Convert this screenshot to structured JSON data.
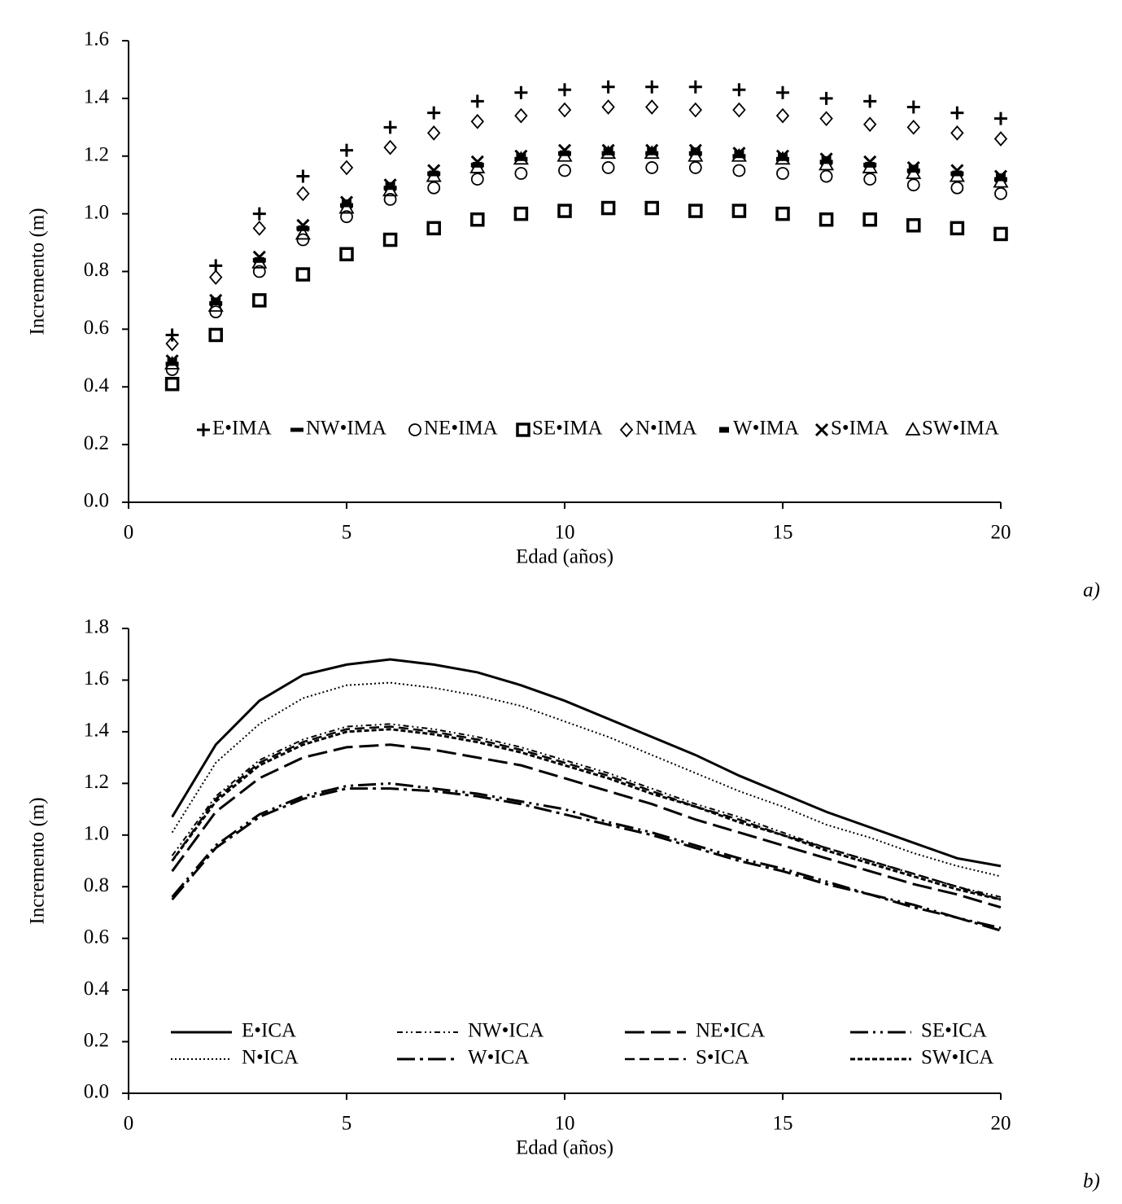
{
  "chart_data": [
    {
      "type": "scatter",
      "panel_label": "a)",
      "xlabel": "Edad (años)",
      "ylabel": "Incremento (m)",
      "x": [
        1,
        2,
        3,
        4,
        5,
        6,
        7,
        8,
        9,
        10,
        11,
        12,
        13,
        14,
        15,
        16,
        17,
        18,
        19,
        20
      ],
      "xlim": [
        0,
        20
      ],
      "xticks": [
        0,
        5,
        10,
        15,
        20
      ],
      "ylim": [
        0,
        1.6
      ],
      "yticks": [
        {
          "value": 0,
          "label": "0.0"
        },
        0.2,
        0.4,
        0.6,
        0.8,
        {
          "value": 1,
          "label": "1.0"
        },
        1.2,
        1.4,
        1.6
      ],
      "legend": "lower center",
      "series": [
        {
          "name": "E•IMA",
          "color": "#000000",
          "marker": "plus",
          "values": [
            0.58,
            0.82,
            1.0,
            1.13,
            1.22,
            1.3,
            1.35,
            1.39,
            1.42,
            1.43,
            1.44,
            1.44,
            1.44,
            1.43,
            1.42,
            1.4,
            1.39,
            1.37,
            1.35,
            1.33
          ]
        },
        {
          "name": "NW•IMA",
          "color": "#000000",
          "marker": "dash",
          "values": [
            0.48,
            0.69,
            0.84,
            0.95,
            1.03,
            1.09,
            1.14,
            1.17,
            1.19,
            1.21,
            1.21,
            1.21,
            1.21,
            1.2,
            1.19,
            1.18,
            1.17,
            1.15,
            1.14,
            1.12
          ]
        },
        {
          "name": "NE•IMA",
          "color": "#000000",
          "marker": "circle",
          "values": [
            0.46,
            0.66,
            0.8,
            0.91,
            0.99,
            1.05,
            1.09,
            1.12,
            1.14,
            1.15,
            1.16,
            1.16,
            1.16,
            1.15,
            1.14,
            1.13,
            1.12,
            1.1,
            1.09,
            1.07
          ]
        },
        {
          "name": "SE•IMA",
          "color": "#000000",
          "marker": "square",
          "values": [
            0.41,
            0.58,
            0.7,
            0.79,
            0.86,
            0.91,
            0.95,
            0.98,
            1.0,
            1.01,
            1.02,
            1.02,
            1.01,
            1.01,
            1.0,
            0.98,
            0.98,
            0.96,
            0.95,
            0.93
          ]
        },
        {
          "name": "N•IMA",
          "color": "#000000",
          "marker": "diamond",
          "values": [
            0.55,
            0.78,
            0.95,
            1.07,
            1.16,
            1.23,
            1.28,
            1.32,
            1.34,
            1.36,
            1.37,
            1.37,
            1.36,
            1.36,
            1.34,
            1.33,
            1.31,
            1.3,
            1.28,
            1.26
          ]
        },
        {
          "name": "W•IMA",
          "color": "#000000",
          "marker": "block",
          "values": [
            0.49,
            0.7,
            0.84,
            0.95,
            1.04,
            1.1,
            1.14,
            1.17,
            1.2,
            1.21,
            1.22,
            1.22,
            1.22,
            1.21,
            1.2,
            1.19,
            1.17,
            1.16,
            1.14,
            1.13
          ]
        },
        {
          "name": "S•IMA",
          "color": "#000000",
          "marker": "cross",
          "values": [
            0.49,
            0.7,
            0.85,
            0.96,
            1.04,
            1.1,
            1.15,
            1.18,
            1.2,
            1.22,
            1.22,
            1.22,
            1.22,
            1.21,
            1.2,
            1.19,
            1.18,
            1.16,
            1.15,
            1.13
          ]
        },
        {
          "name": "SW•IMA",
          "color": "#000000",
          "marker": "triangle",
          "values": [
            0.48,
            0.68,
            0.83,
            0.93,
            1.02,
            1.08,
            1.13,
            1.16,
            1.19,
            1.2,
            1.21,
            1.21,
            1.2,
            1.2,
            1.19,
            1.17,
            1.16,
            1.14,
            1.13,
            1.11
          ]
        }
      ]
    },
    {
      "type": "line",
      "panel_label": "b)",
      "xlabel": "Edad (años)",
      "ylabel": "Incremento (m)",
      "x": [
        1,
        2,
        3,
        4,
        5,
        6,
        7,
        8,
        9,
        10,
        11,
        12,
        13,
        14,
        15,
        16,
        17,
        18,
        19,
        20
      ],
      "xlim": [
        0,
        20
      ],
      "xticks": [
        0,
        5,
        10,
        15,
        20
      ],
      "ylim": [
        0,
        1.8
      ],
      "yticks": [
        {
          "value": 0,
          "label": "0.0"
        },
        0.2,
        0.4,
        0.6,
        0.8,
        {
          "value": 1,
          "label": "1.0"
        },
        1.2,
        1.4,
        1.6,
        1.8
      ],
      "legend": "lower center",
      "series": [
        {
          "name": "E•ICA",
          "color": "#000000",
          "dash": "solid",
          "values": [
            1.07,
            1.35,
            1.52,
            1.62,
            1.66,
            1.68,
            1.66,
            1.63,
            1.58,
            1.52,
            1.45,
            1.38,
            1.31,
            1.23,
            1.16,
            1.09,
            1.03,
            0.97,
            0.91,
            0.88
          ]
        },
        {
          "name": "NW•ICA",
          "color": "#000000",
          "dash": "dash-dot-dot",
          "values": [
            0.92,
            1.15,
            1.29,
            1.37,
            1.42,
            1.43,
            1.41,
            1.38,
            1.34,
            1.29,
            1.24,
            1.18,
            1.12,
            1.07,
            1.01,
            0.95,
            0.9,
            0.85,
            0.8,
            0.76
          ]
        },
        {
          "name": "NE•ICA",
          "color": "#000000",
          "dash": "long-dash",
          "values": [
            0.86,
            1.09,
            1.22,
            1.3,
            1.34,
            1.35,
            1.33,
            1.3,
            1.27,
            1.22,
            1.17,
            1.12,
            1.06,
            1.01,
            0.96,
            0.91,
            0.86,
            0.81,
            0.77,
            0.72
          ]
        },
        {
          "name": "SE•ICA",
          "color": "#000000",
          "dash": "long-dash-dot-dot",
          "values": [
            0.76,
            0.96,
            1.08,
            1.15,
            1.19,
            1.2,
            1.18,
            1.16,
            1.13,
            1.1,
            1.05,
            1.01,
            0.96,
            0.91,
            0.87,
            0.82,
            0.77,
            0.73,
            0.68,
            0.64
          ]
        },
        {
          "name": "N•ICA",
          "color": "#000000",
          "dash": "dotted",
          "values": [
            1.01,
            1.28,
            1.43,
            1.53,
            1.58,
            1.59,
            1.57,
            1.54,
            1.5,
            1.44,
            1.38,
            1.31,
            1.24,
            1.17,
            1.11,
            1.04,
            0.99,
            0.93,
            0.88,
            0.84
          ]
        },
        {
          "name": "W•ICA",
          "color": "#000000",
          "dash": "long-dash-dot",
          "values": [
            0.75,
            0.95,
            1.07,
            1.14,
            1.18,
            1.18,
            1.17,
            1.15,
            1.12,
            1.08,
            1.04,
            1.0,
            0.95,
            0.9,
            0.86,
            0.81,
            0.77,
            0.72,
            0.68,
            0.63
          ]
        },
        {
          "name": "S•ICA",
          "color": "#000000",
          "dash": "dashed",
          "values": [
            0.9,
            1.14,
            1.28,
            1.36,
            1.41,
            1.42,
            1.4,
            1.37,
            1.33,
            1.28,
            1.23,
            1.17,
            1.11,
            1.06,
            1.0,
            0.95,
            0.9,
            0.85,
            0.8,
            0.75
          ]
        },
        {
          "name": "SW•ICA",
          "color": "#000000",
          "dash": "short-dash",
          "values": [
            0.9,
            1.13,
            1.27,
            1.35,
            1.4,
            1.41,
            1.39,
            1.36,
            1.32,
            1.27,
            1.22,
            1.16,
            1.11,
            1.05,
            1.0,
            0.94,
            0.89,
            0.84,
            0.79,
            0.75
          ]
        }
      ]
    }
  ]
}
